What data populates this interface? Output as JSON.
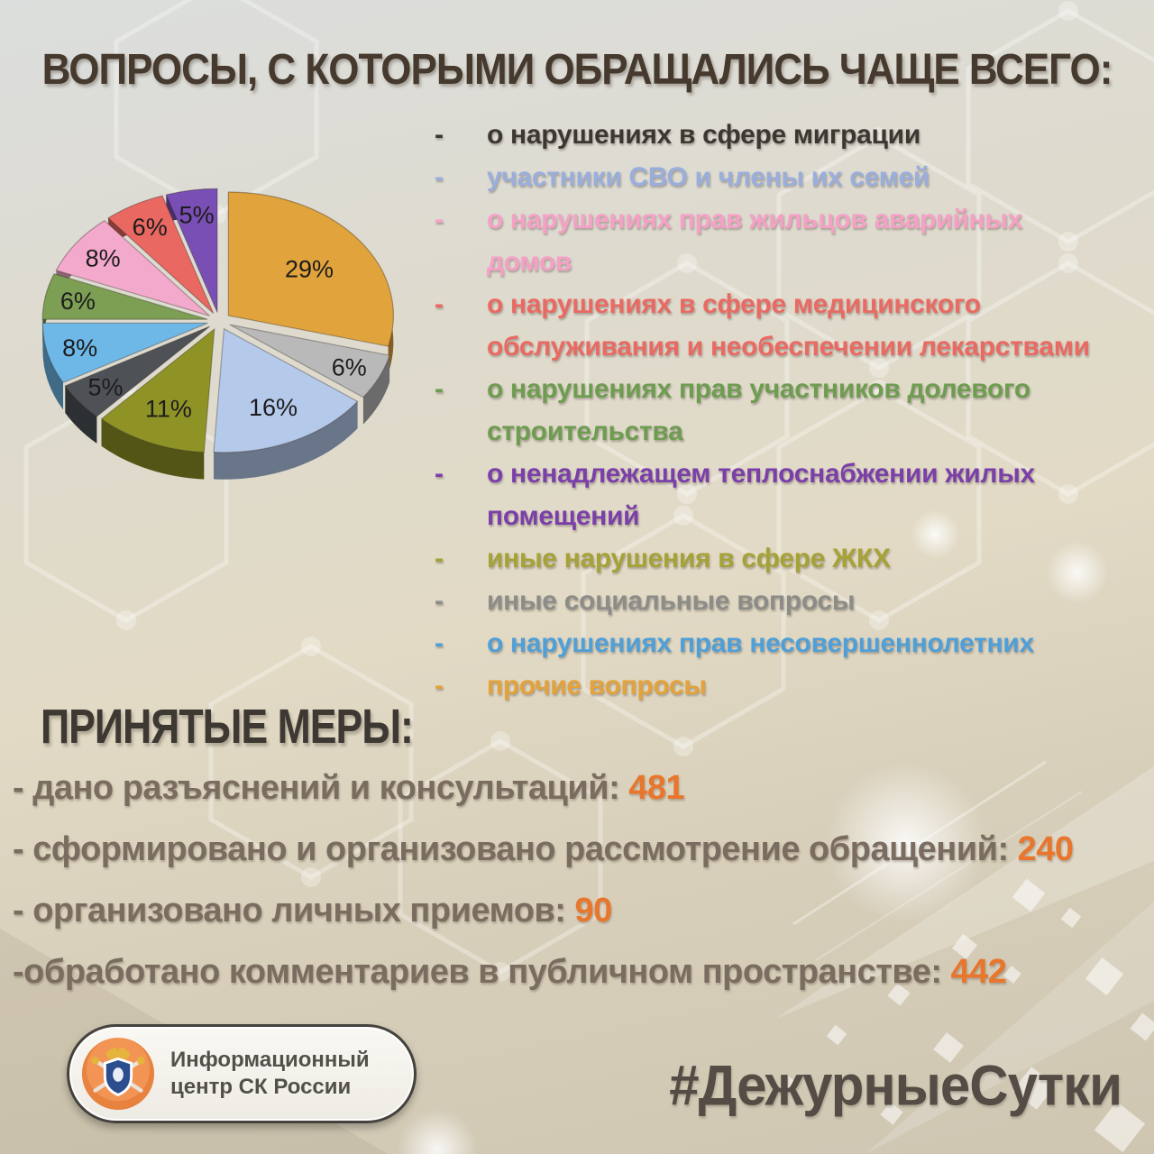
{
  "title": "ВОПРОСЫ, С КОТОРЫМИ ОБРАЩАЛИСЬ ЧАЩЕ ВСЕГО:",
  "bullet_char": "-",
  "topics": [
    {
      "lines": [
        "о нарушениях в сфере миграции"
      ],
      "color": "#3d3733"
    },
    {
      "lines": [
        "участники СВО и члены их семей"
      ],
      "color": "#9aaedc"
    },
    {
      "lines": [
        "о нарушениях прав жильцов аварийных",
        "домов"
      ],
      "color": "#f5a0c6"
    },
    {
      "lines": [
        "о нарушениях в сфере медицинского",
        "обслуживания и необеспечении лекарствами"
      ],
      "color": "#e96a63"
    },
    {
      "lines": [
        "о нарушениях прав участников долевого",
        "строительства"
      ],
      "color": "#6e9c51"
    },
    {
      "lines": [
        "о ненадлежащем теплоснабжении жилых",
        "помещений"
      ],
      "color": "#7b3fa9"
    },
    {
      "lines": [
        "иные нарушения в сфере ЖКХ"
      ],
      "color": "#a5a238"
    },
    {
      "lines": [
        "иные социальные вопросы"
      ],
      "color": "#8c8c89"
    },
    {
      "lines": [
        "о нарушениях прав несовершеннолетних"
      ],
      "color": "#4f9fd8"
    },
    {
      "lines": [
        "прочие вопросы"
      ],
      "color": "#e2a23c"
    }
  ],
  "chart_data": {
    "type": "pie",
    "style": "3d-exploded",
    "direction": "clockwise",
    "start_angle_deg": 0,
    "unit": "%",
    "slices": [
      {
        "label": "29%",
        "value": 29,
        "color": "#e1a33c"
      },
      {
        "label": "6%",
        "value": 6,
        "color": "#b9b9b9"
      },
      {
        "label": "16%",
        "value": 16,
        "color": "#b5c9eb"
      },
      {
        "label": "11%",
        "value": 11,
        "color": "#8f9326"
      },
      {
        "label": "5%",
        "value": 5,
        "color": "#4e5256"
      },
      {
        "label": "8%",
        "value": 8,
        "color": "#6eb8e8"
      },
      {
        "label": "6%",
        "value": 6,
        "color": "#7c9f53"
      },
      {
        "label": "8%",
        "value": 8,
        "color": "#f3a9cb"
      },
      {
        "label": "6%",
        "value": 6,
        "color": "#ea6862"
      },
      {
        "label": "5%",
        "value": 5,
        "color": "#7a4fb5"
      }
    ]
  },
  "measures": {
    "heading": "ПРИНЯТЫЕ МЕРЫ:",
    "items": [
      {
        "label": "- дано разъяснений и консультаций:",
        "value": "481"
      },
      {
        "label": "- сформировано и организовано рассмотрение обращений:",
        "value": "240"
      },
      {
        "label": "- организовано личных приемов:",
        "value": "90"
      },
      {
        "label": "-обработано комментариев в публичном пространстве:",
        "value": "442"
      }
    ]
  },
  "footer": {
    "logo_text": "Информационный центр СК России",
    "hashtag": "#ДежурныеСутки"
  },
  "colors": {
    "title": "#463a2e",
    "measures_heading": "#3e3833",
    "measure_text": "#7b6c60",
    "measure_value": "#e8762c",
    "hashtag": "#554d45",
    "pie_label": "#1c1c1c"
  }
}
